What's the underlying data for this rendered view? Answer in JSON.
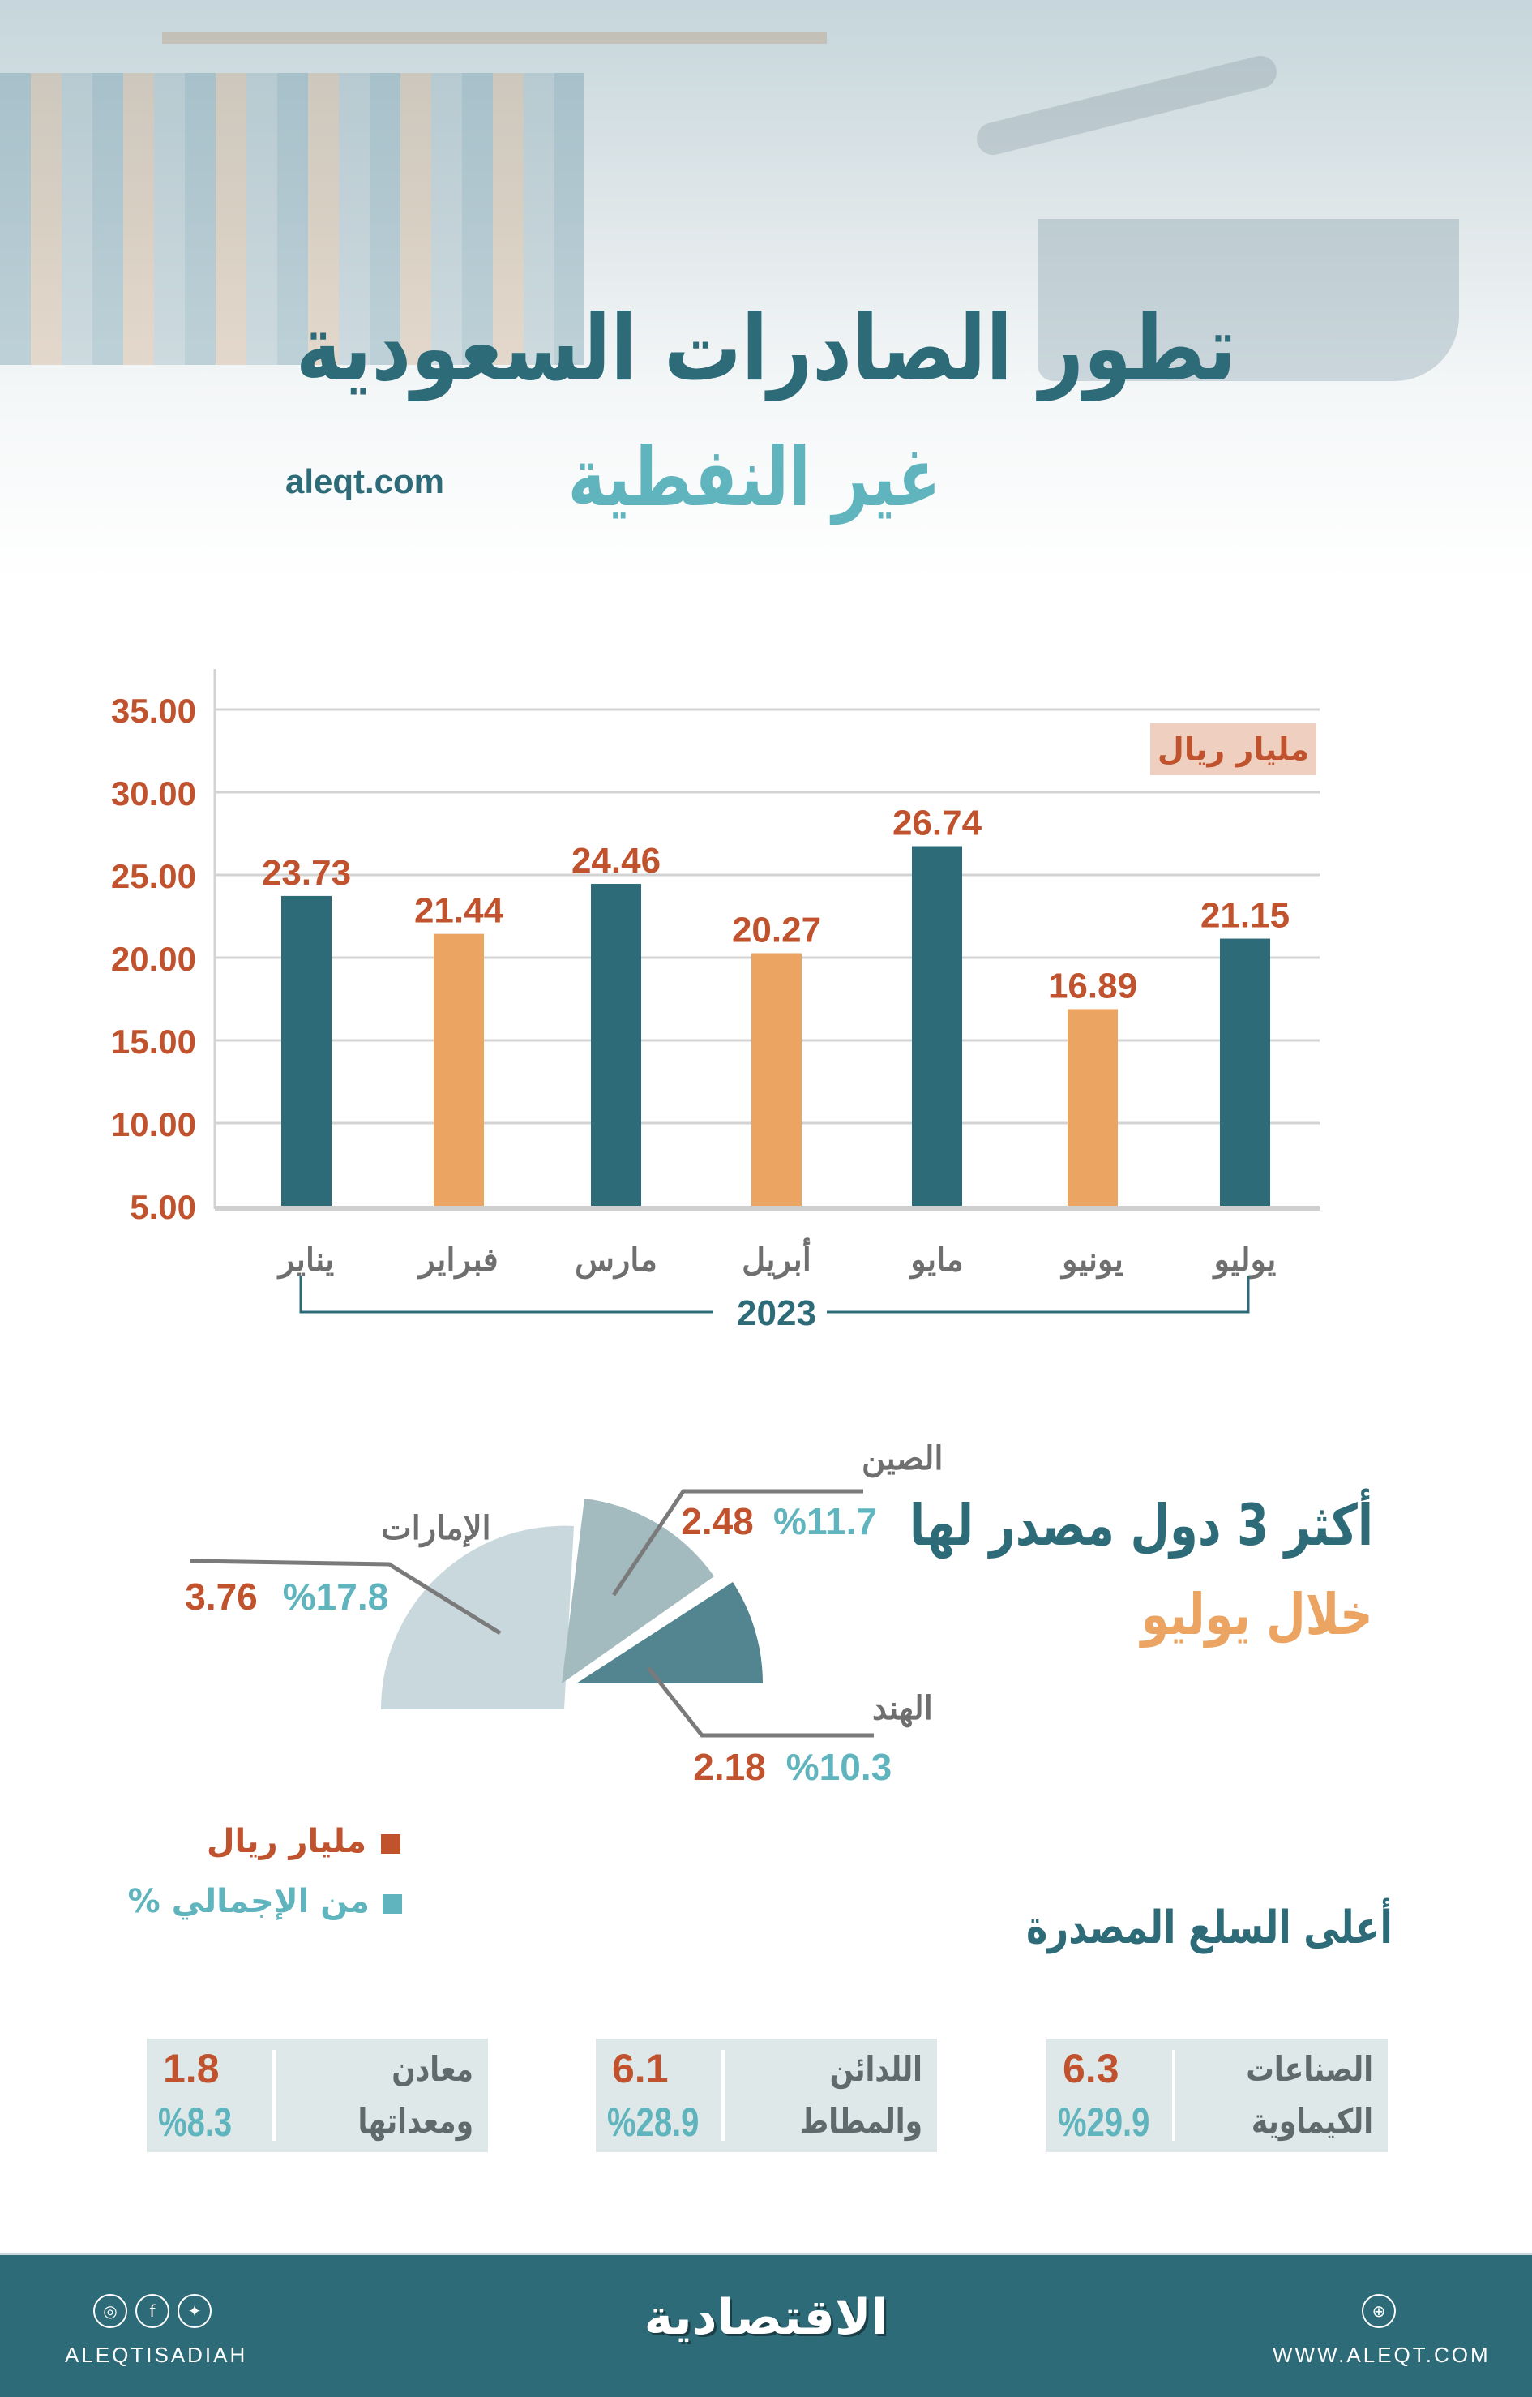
{
  "header": {
    "title_line1": "تطور الصادرات السعودية",
    "title_line2": "غير النفطية",
    "site": "aleqt.com"
  },
  "chart_data": [
    {
      "type": "bar",
      "unit_label": "مليار ريال",
      "categories": [
        "يناير",
        "فبراير",
        "مارس",
        "أبريل",
        "مايو",
        "يونيو",
        "يوليو"
      ],
      "values": [
        23.73,
        21.44,
        24.46,
        20.27,
        26.74,
        16.89,
        21.15
      ],
      "value_labels": [
        "23.73",
        "21.44",
        "24.46",
        "20.27",
        "26.74",
        "16.89",
        "21.15"
      ],
      "bar_colors": [
        "#2e6b78",
        "#eba462",
        "#2e6b78",
        "#eba462",
        "#2e6b78",
        "#eba462",
        "#2e6b78"
      ],
      "yticks": [
        "5.00",
        "10.00",
        "15.00",
        "20.00",
        "25.00",
        "30.00",
        "35.00"
      ],
      "ylim": [
        5,
        35
      ],
      "grid": true,
      "group_label": "2023"
    },
    {
      "type": "pie",
      "title": "أكثر 3 دول مصدر لها",
      "subtitle": "خلال يوليو",
      "slices": [
        {
          "label": "الإمارات",
          "value": 3.76,
          "value_label": "3.76",
          "percent": 17.8,
          "percent_label": "%17.8",
          "color": "#c9d8dd"
        },
        {
          "label": "الصين",
          "value": 2.48,
          "value_label": "2.48",
          "percent": 11.7,
          "percent_label": "%11.7",
          "color": "#a3babf"
        },
        {
          "label": "الهند",
          "value": 2.18,
          "value_label": "2.18",
          "percent": 10.3,
          "percent_label": "%10.3",
          "color": "#528590"
        }
      ],
      "legend": [
        {
          "label": "مليار ريال",
          "color": "#c0532e"
        },
        {
          "label": "من الإجمالي %",
          "color": "#5fb4bd"
        }
      ]
    }
  ],
  "commodities": {
    "title": "أعلى السلع المصدرة",
    "items": [
      {
        "label_line1": "الصناعات",
        "label_line2": "الكيماوية",
        "value": "6.3",
        "percent": "%29.9"
      },
      {
        "label_line1": "اللدائن",
        "label_line2": "والمطاط",
        "value": "6.1",
        "percent": "%28.9"
      },
      {
        "label_line1": "معادن",
        "label_line2": "ومعداتها",
        "value": "1.8",
        "percent": "%8.3"
      }
    ]
  },
  "footer": {
    "handle": "ALEQTISADIAH",
    "logo": "الاقتصادية",
    "website": "WWW.ALEQT.COM",
    "icons": [
      "instagram-icon",
      "facebook-icon",
      "twitter-icon",
      "globe-icon"
    ]
  },
  "colors": {
    "teal": "#2e6b78",
    "orange": "#eba462",
    "rust": "#c0532e",
    "light_teal": "#5fb4bd"
  }
}
